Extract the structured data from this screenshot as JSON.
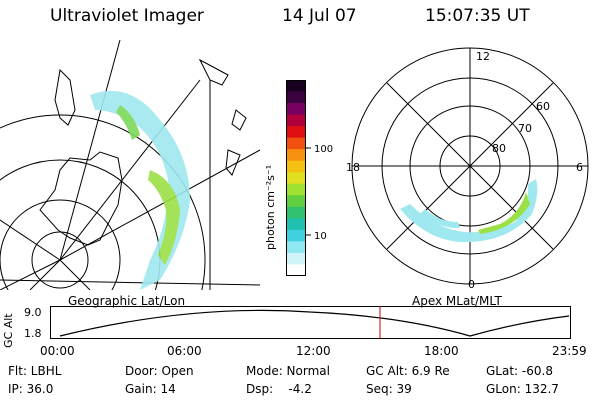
{
  "header": {
    "instrument": "Ultraviolet Imager",
    "date": "14 Jul 07",
    "time": "15:07:35 UT"
  },
  "colorbar": {
    "unit_label": "photon cm⁻²s⁻¹",
    "ticks": [
      "100",
      "10"
    ],
    "colors": [
      "#1a0020",
      "#3c0040",
      "#780060",
      "#b0003c",
      "#e01010",
      "#f05010",
      "#f59010",
      "#f5c010",
      "#e0e020",
      "#a0e030",
      "#60d040",
      "#30c070",
      "#20c0b0",
      "#40d0e0",
      "#90e8f0",
      "#d0f4f8",
      "#ffffff"
    ]
  },
  "left_map": {
    "label": "Geographic Lat/Lon"
  },
  "right_map": {
    "label": "Apex MLat/MLT",
    "mlt_labels": {
      "top": "12",
      "right": "6",
      "bottom": "0",
      "left": "18"
    },
    "lat_labels": [
      "60",
      "70",
      "80"
    ]
  },
  "altitude_plot": {
    "ylabel": "GC Alt",
    "yticks": [
      "9.0",
      "1.8"
    ],
    "xticks": [
      "00:00",
      "06:00",
      "12:00",
      "18:00",
      "23:59"
    ],
    "marker_color": "#cc0000"
  },
  "info": {
    "flt": "Flt: LBHL",
    "ip": "IP: 36.0",
    "door": "Door: Open",
    "gain": "Gain: 14",
    "mode": "Mode: Normal",
    "dsp": "Dsp:    -4.2",
    "gcalt": "GC Alt: 6.9 Re",
    "seq": "Seq: 39",
    "glat": "GLat: -60.8",
    "glon": "GLon: 132.7"
  }
}
